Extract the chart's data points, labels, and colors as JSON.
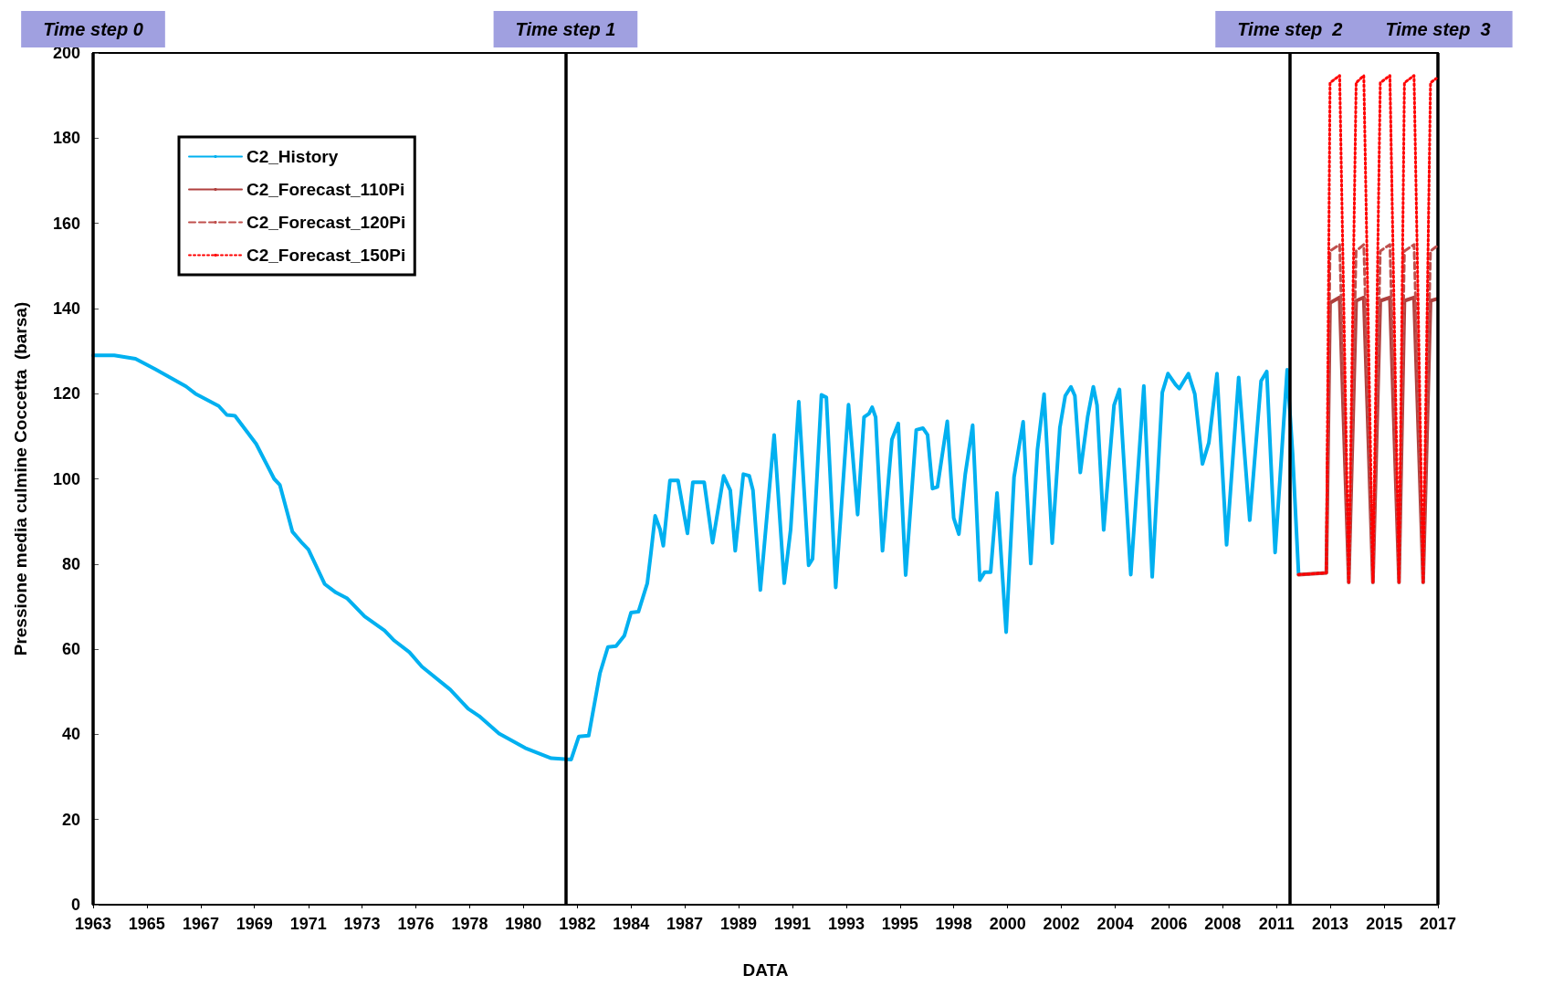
{
  "chart_data": {
    "type": "line",
    "xlabel": "DATA",
    "ylabel": "Pressione media culmine Coccetta  (barsa)",
    "xlim": [
      1962.57,
      2017.17
    ],
    "ylim": [
      0,
      200
    ],
    "xticks": [
      {
        "value": 1962.57,
        "label": "1963"
      },
      {
        "value": 1964.75,
        "label": "1965"
      },
      {
        "value": 1966.94,
        "label": "1967"
      },
      {
        "value": 1969.12,
        "label": "1969"
      },
      {
        "value": 1971.31,
        "label": "1971"
      },
      {
        "value": 1973.49,
        "label": "1973"
      },
      {
        "value": 1975.67,
        "label": "1976"
      },
      {
        "value": 1977.86,
        "label": "1978"
      },
      {
        "value": 1980.04,
        "label": "1980"
      },
      {
        "value": 1982.23,
        "label": "1982"
      },
      {
        "value": 1984.41,
        "label": "1984"
      },
      {
        "value": 1986.59,
        "label": "1987"
      },
      {
        "value": 1988.78,
        "label": "1989"
      },
      {
        "value": 1990.96,
        "label": "1991"
      },
      {
        "value": 1993.15,
        "label": "1993"
      },
      {
        "value": 1995.33,
        "label": "1995"
      },
      {
        "value": 1997.51,
        "label": "1998"
      },
      {
        "value": 1999.7,
        "label": "2000"
      },
      {
        "value": 2001.88,
        "label": "2002"
      },
      {
        "value": 2004.07,
        "label": "2004"
      },
      {
        "value": 2006.25,
        "label": "2006"
      },
      {
        "value": 2008.43,
        "label": "2008"
      },
      {
        "value": 2010.62,
        "label": "2011"
      },
      {
        "value": 2012.8,
        "label": "2013"
      },
      {
        "value": 2014.99,
        "label": "2015"
      },
      {
        "value": 2017.17,
        "label": "2017"
      }
    ],
    "yticks": [
      0,
      20,
      40,
      60,
      80,
      100,
      120,
      140,
      160,
      180,
      200
    ],
    "grid": false,
    "legend": "top left",
    "marker": "none",
    "ref_lines": [
      {
        "axis": "x",
        "value": 1962.57,
        "label": "Time step 0",
        "color": "#000000"
      },
      {
        "axis": "x",
        "value": 1981.75,
        "label": "Time step 1",
        "color": "#000000"
      },
      {
        "axis": "x",
        "value": 2011.16,
        "label": "Time step  2",
        "color": "#000000"
      },
      {
        "axis": "x",
        "value": 2017.17,
        "label": "Time step  3",
        "color": "#000000"
      }
    ],
    "series": [
      {
        "name": "C2_History",
        "color": "#00b0f0",
        "line_style": "solid",
        "x": [
          1962.57,
          1963.43,
          1964.29,
          1965.1,
          1966.34,
          1966.72,
          1967.67,
          1968.0,
          1968.33,
          1969.19,
          1969.92,
          1970.15,
          1970.66,
          1971.06,
          1971.31,
          1971.97,
          1972.43,
          1972.89,
          1973.59,
          1974.4,
          1974.8,
          1975.41,
          1975.92,
          1977.07,
          1977.8,
          1978.24,
          1979.05,
          1980.11,
          1981.17,
          1981.98,
          1982.29,
          1982.69,
          1983.15,
          1983.47,
          1983.8,
          1984.14,
          1984.41,
          1984.71,
          1985.07,
          1985.22,
          1985.39,
          1985.59,
          1985.72,
          1985.99,
          1986.32,
          1986.7,
          1986.92,
          1987.38,
          1987.72,
          1988.17,
          1988.44,
          1988.64,
          1988.97,
          1989.21,
          1989.36,
          1989.66,
          1990.22,
          1990.63,
          1990.89,
          1991.22,
          1991.62,
          1991.78,
          1992.14,
          1992.34,
          1992.72,
          1993.24,
          1993.61,
          1993.87,
          1994.07,
          1994.2,
          1994.34,
          1994.62,
          1995.0,
          1995.26,
          1995.56,
          1995.99,
          1996.26,
          1996.45,
          1996.65,
          1996.85,
          1997.25,
          1997.51,
          1997.72,
          1997.98,
          1998.28,
          1998.57,
          1998.77,
          1999.01,
          1999.27,
          1999.64,
          1999.96,
          2000.33,
          2000.64,
          2000.91,
          2001.18,
          2001.51,
          2001.82,
          2002.04,
          2002.27,
          2002.43,
          2002.65,
          2002.95,
          2003.18,
          2003.33,
          2003.6,
          2004.02,
          2004.24,
          2004.7,
          2005.23,
          2005.57,
          2005.98,
          2006.21,
          2006.52,
          2006.67,
          2007.04,
          2007.3,
          2007.61,
          2007.87,
          2008.2,
          2008.59,
          2009.08,
          2009.53,
          2009.99,
          2010.22,
          2010.56,
          2011.05,
          2011.27,
          2011.51
        ],
        "values": [
          129.0,
          129.0,
          128.2,
          125.7,
          121.7,
          120,
          117.1,
          115.0,
          114.8,
          108.2,
          100,
          98.6,
          87.6,
          84.9,
          83.4,
          75.3,
          73.3,
          71.9,
          67.7,
          64.4,
          62,
          59.3,
          55.9,
          50.5,
          46,
          44.3,
          40.2,
          36.8,
          34.4,
          34.1,
          39.5,
          39.7,
          54.4,
          60.5,
          60.7,
          63.2,
          68.6,
          68.8,
          75.5,
          82.7,
          91.3,
          88.1,
          84.3,
          99.6,
          99.6,
          87.2,
          99.2,
          99.2,
          85,
          100.7,
          97.3,
          83.1,
          101.1,
          100.7,
          97.3,
          73.9,
          110.3,
          75.5,
          88.1,
          118.1,
          79.7,
          81.2,
          119.7,
          119.1,
          74.5,
          117.4,
          91.6,
          114.5,
          115.3,
          116.8,
          114.5,
          83.1,
          109.2,
          113,
          77.4,
          111.5,
          111.9,
          110.3,
          97.7,
          98.1,
          113.5,
          90.8,
          87,
          101.1,
          112.6,
          76.2,
          78.1,
          78.1,
          96.7,
          64,
          100.4,
          113.4,
          80.1,
          106.8,
          119.9,
          84.9,
          112,
          119.5,
          121.6,
          119.5,
          101.5,
          114.6,
          121.6,
          117.3,
          88,
          117.3,
          121,
          77.5,
          121.8,
          77,
          120.3,
          124.7,
          122.1,
          121.2,
          124.7,
          119.9,
          103.5,
          108.5,
          124.7,
          84.5,
          123.8,
          90.3,
          123,
          125.2,
          82.7,
          125.6,
          105.9,
          77.9
        ]
      },
      {
        "name": "C2_Forecast_110Pi",
        "color": "#b0403e",
        "line_style": "solid",
        "x": [
          2011.51,
          2012.64,
          2012.79,
          2013.18,
          2013.55,
          2013.85,
          2014.16,
          2014.53,
          2014.83,
          2015.22,
          2015.59,
          2015.81,
          2016.2,
          2016.57,
          2016.87,
          2017.1
        ],
        "values": [
          77.5,
          77.9,
          141.3,
          142.6,
          75.7,
          141.8,
          142.6,
          75.7,
          141.8,
          142.6,
          75.7,
          141.8,
          142.6,
          75.7,
          141.8,
          142.2
        ]
      },
      {
        "name": "C2_Forecast_120Pi",
        "color": "#c0504d",
        "line_style": "dashed",
        "x": [
          2011.51,
          2012.64,
          2012.79,
          2013.18,
          2013.55,
          2013.85,
          2014.16,
          2014.53,
          2014.83,
          2015.22,
          2015.59,
          2015.81,
          2016.2,
          2016.57,
          2016.87,
          2017.1
        ],
        "values": [
          77.5,
          77.9,
          153.5,
          155,
          75.7,
          153.5,
          155,
          75.7,
          153.5,
          155,
          75.7,
          153.5,
          155,
          75.7,
          153.5,
          154.5
        ]
      },
      {
        "name": "C2_Forecast_150Pi",
        "color": "#ff0000",
        "line_style": "dotted",
        "x": [
          2011.51,
          2012.64,
          2012.79,
          2013.18,
          2013.55,
          2013.85,
          2014.16,
          2014.53,
          2014.83,
          2015.22,
          2015.59,
          2015.81,
          2016.2,
          2016.57,
          2016.87,
          2017.1
        ],
        "values": [
          77.5,
          77.9,
          193,
          194.7,
          75.7,
          193,
          194.7,
          75.7,
          193,
          194.7,
          75.7,
          193,
          194.7,
          75.7,
          193,
          194
        ]
      }
    ]
  }
}
